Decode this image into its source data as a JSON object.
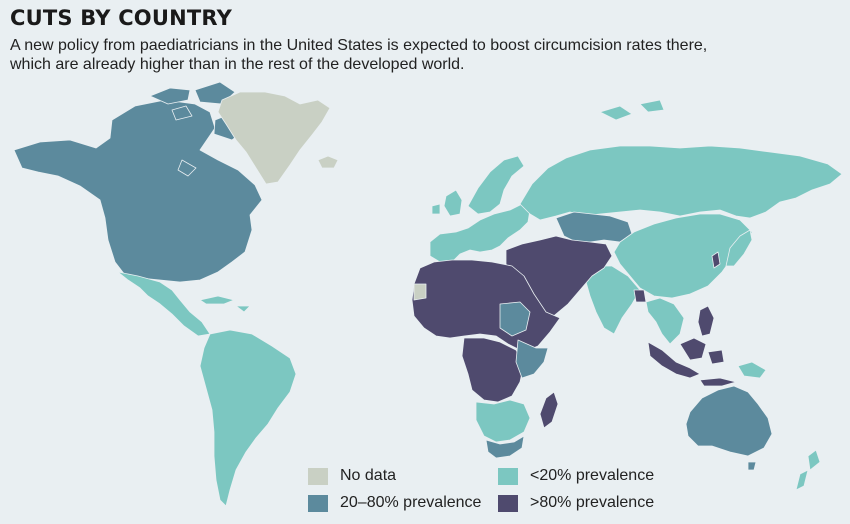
{
  "title": "CUTS BY COUNTRY",
  "subtitle": "A new policy from paediatricians in the United States is expected to boost circumcision rates there, which are already higher than in the rest of the developed world.",
  "colors": {
    "background": "#e9eff2",
    "no_data": "#c9d0c4",
    "low": "#7cc7c1",
    "mid": "#5c8a9d",
    "high": "#4f4a6e",
    "border": "#e9eff2"
  },
  "legend": [
    {
      "key": "no_data",
      "label": "No data"
    },
    {
      "key": "low",
      "label": "<20% prevalence"
    },
    {
      "key": "mid",
      "label": "20–80% prevalence"
    },
    {
      "key": "high",
      "label": ">80% prevalence"
    }
  ],
  "regions": [
    {
      "name": "north-america",
      "category": "mid"
    },
    {
      "name": "canada-arctic-islands",
      "category": "mid"
    },
    {
      "name": "greenland",
      "category": "no_data"
    },
    {
      "name": "iceland",
      "category": "no_data"
    },
    {
      "name": "mexico-central-america",
      "category": "low"
    },
    {
      "name": "caribbean",
      "category": "low"
    },
    {
      "name": "south-america",
      "category": "low"
    },
    {
      "name": "europe",
      "category": "low"
    },
    {
      "name": "scandinavia",
      "category": "low"
    },
    {
      "name": "uk-ireland",
      "category": "low"
    },
    {
      "name": "russia-north-asia",
      "category": "low"
    },
    {
      "name": "kazakhstan",
      "category": "mid"
    },
    {
      "name": "china",
      "category": "low"
    },
    {
      "name": "india",
      "category": "low"
    },
    {
      "name": "middle-east-central-asia",
      "category": "high"
    },
    {
      "name": "south-korea",
      "category": "high"
    },
    {
      "name": "japan",
      "category": "low"
    },
    {
      "name": "southeast-asia",
      "category": "low"
    },
    {
      "name": "bangladesh",
      "category": "high"
    },
    {
      "name": "philippines",
      "category": "high"
    },
    {
      "name": "indonesia-malaysia",
      "category": "high"
    },
    {
      "name": "north-africa",
      "category": "high"
    },
    {
      "name": "western-sahara",
      "category": "no_data"
    },
    {
      "name": "south-sudan",
      "category": "mid"
    },
    {
      "name": "central-africa",
      "category": "high"
    },
    {
      "name": "east-africa",
      "category": "mid"
    },
    {
      "name": "southern-africa",
      "category": "low"
    },
    {
      "name": "south-africa",
      "category": "mid"
    },
    {
      "name": "madagascar",
      "category": "high"
    },
    {
      "name": "australia",
      "category": "mid"
    },
    {
      "name": "papua-new-guinea",
      "category": "low"
    },
    {
      "name": "new-zealand",
      "category": "low"
    }
  ]
}
